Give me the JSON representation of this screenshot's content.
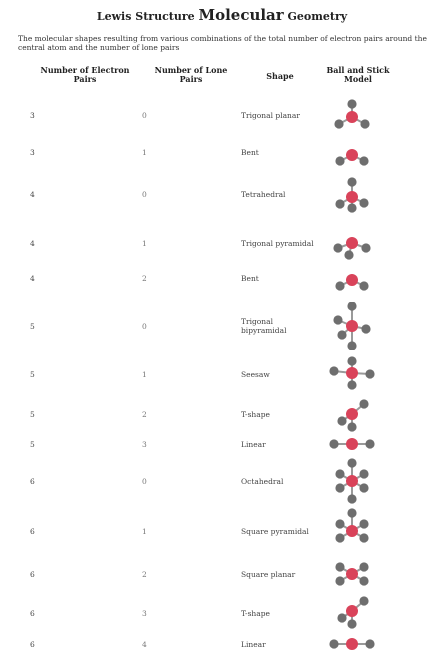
{
  "title": {
    "prefix": "Lewis Structure ",
    "main": "Molecular",
    "suffix": " Geometry"
  },
  "intro": "The molecular shapes resulting from various combinations of the total number of electron pairs around the central atom and the number of lone pairs",
  "headers": {
    "electron_pairs": "Number of Electron Pairs",
    "lone_pairs": "Number of Lone Pairs",
    "shape": "Shape",
    "model": "Ball and Stick Model"
  },
  "rows": [
    {
      "pairs": "3",
      "lone": "0",
      "shape": "Trigonal planar",
      "model": "trigonal-planar"
    },
    {
      "pairs": "3",
      "lone": "1",
      "shape": "Bent",
      "model": "bent"
    },
    {
      "pairs": "4",
      "lone": "0",
      "shape": "Tetrahedral",
      "model": "tetrahedral"
    },
    {
      "pairs": "4",
      "lone": "1",
      "shape": "Trigonal pyramidal",
      "model": "trigonal-pyramidal"
    },
    {
      "pairs": "4",
      "lone": "2",
      "shape": "Bent",
      "model": "bent"
    },
    {
      "pairs": "5",
      "lone": "0",
      "shape": "Trigonal bipyramidal",
      "model": "trigonal-bipyramidal"
    },
    {
      "pairs": "5",
      "lone": "1",
      "shape": "Seesaw",
      "model": "seesaw"
    },
    {
      "pairs": "5",
      "lone": "2",
      "shape": "T-shape",
      "model": "t-shape"
    },
    {
      "pairs": "5",
      "lone": "3",
      "shape": "Linear",
      "model": "linear"
    },
    {
      "pairs": "6",
      "lone": "0",
      "shape": "Octahedral",
      "model": "octahedral"
    },
    {
      "pairs": "6",
      "lone": "1",
      "shape": "Square pyramidal",
      "model": "square-pyramidal"
    },
    {
      "pairs": "6",
      "lone": "2",
      "shape": "Square planar",
      "model": "square-planar"
    },
    {
      "pairs": "6",
      "lone": "3",
      "shape": "T-shape",
      "model": "t-shape"
    },
    {
      "pairs": "6",
      "lone": "4",
      "shape": "Linear",
      "model": "linear"
    }
  ],
  "colors": {
    "central_atom": "#d9435a",
    "outer_atom": "#6e6e6e",
    "bond": "#9a9a9a"
  }
}
